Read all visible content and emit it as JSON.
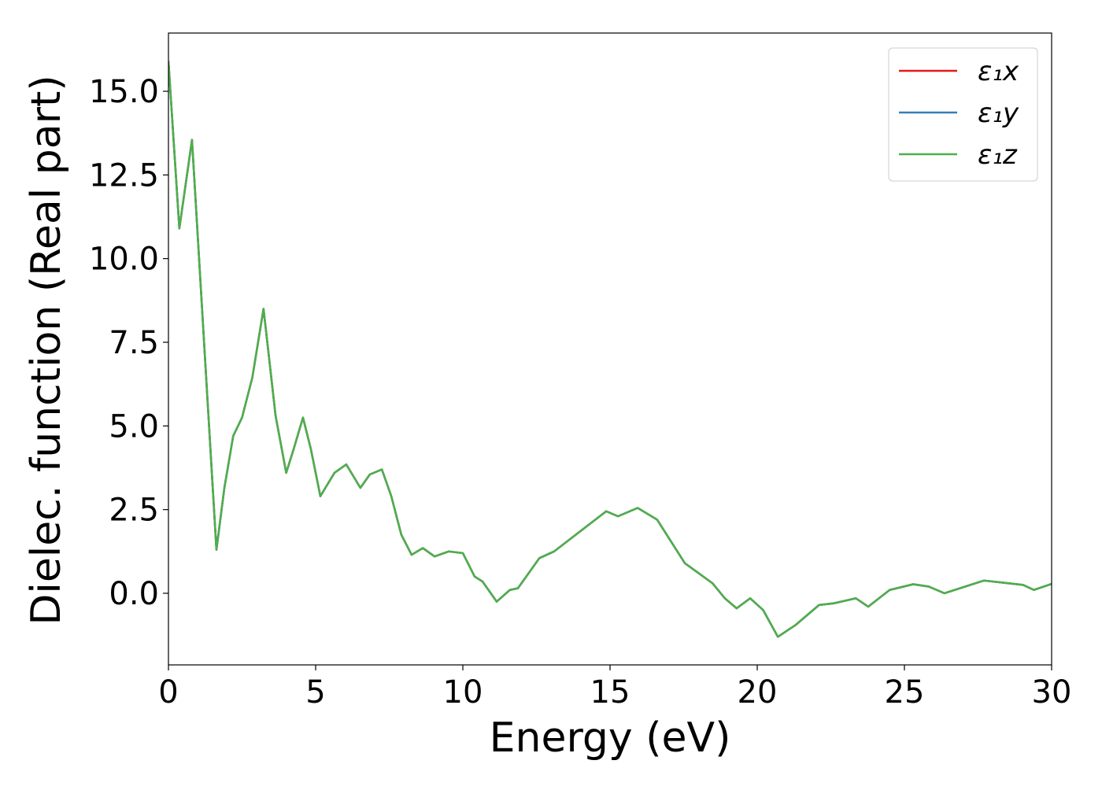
{
  "chart_data": {
    "type": "line",
    "xlabel": "Energy (eV)",
    "ylabel": "Dielec. function (Real part)",
    "x": [
      0,
      0.37,
      0.8,
      1.63,
      1.9,
      2.2,
      2.5,
      2.85,
      3.23,
      3.64,
      4.0,
      4.25,
      4.57,
      4.84,
      5.16,
      5.64,
      6.04,
      6.52,
      6.84,
      7.25,
      7.57,
      7.91,
      8.26,
      8.64,
      9.04,
      9.52,
      10.0,
      10.4,
      10.67,
      11.15,
      11.6,
      11.87,
      12.6,
      13.1,
      14.06,
      14.87,
      15.27,
      15.94,
      16.6,
      17.54,
      18.48,
      18.9,
      19.3,
      19.76,
      20.2,
      20.7,
      21.3,
      22.1,
      22.6,
      23.35,
      23.77,
      24.5,
      25.3,
      25.83,
      26.36,
      27.7,
      29.03,
      29.4,
      30
    ],
    "series": [
      {
        "name": "ε₁x",
        "color": "#e41a1c",
        "values": [
          15.9,
          10.9,
          13.55,
          1.3,
          3.15,
          4.7,
          5.25,
          6.45,
          8.5,
          5.3,
          3.6,
          4.3,
          5.25,
          4.3,
          2.9,
          3.6,
          3.85,
          3.15,
          3.55,
          3.7,
          2.9,
          1.75,
          1.15,
          1.35,
          1.1,
          1.25,
          1.2,
          0.5,
          0.35,
          -0.25,
          0.1,
          0.15,
          1.05,
          1.25,
          1.9,
          2.45,
          2.3,
          2.55,
          2.2,
          0.9,
          0.3,
          -0.15,
          -0.45,
          -0.15,
          -0.5,
          -1.3,
          -0.95,
          -0.35,
          -0.3,
          -0.15,
          -0.4,
          0.1,
          0.27,
          0.2,
          0,
          0.38,
          0.25,
          0.1,
          0.28
        ]
      },
      {
        "name": "ε₁y",
        "color": "#377eb8",
        "values": [
          15.9,
          10.9,
          13.55,
          1.3,
          3.15,
          4.7,
          5.25,
          6.45,
          8.5,
          5.3,
          3.6,
          4.3,
          5.25,
          4.3,
          2.9,
          3.6,
          3.85,
          3.15,
          3.55,
          3.7,
          2.9,
          1.75,
          1.15,
          1.35,
          1.1,
          1.25,
          1.2,
          0.5,
          0.35,
          -0.25,
          0.1,
          0.15,
          1.05,
          1.25,
          1.9,
          2.45,
          2.3,
          2.55,
          2.2,
          0.9,
          0.3,
          -0.15,
          -0.45,
          -0.15,
          -0.5,
          -1.3,
          -0.95,
          -0.35,
          -0.3,
          -0.15,
          -0.4,
          0.1,
          0.27,
          0.2,
          0,
          0.38,
          0.25,
          0.1,
          0.28
        ]
      },
      {
        "name": "ε₁z",
        "color": "#4daf4a",
        "values": [
          15.9,
          10.9,
          13.55,
          1.3,
          3.15,
          4.7,
          5.25,
          6.45,
          8.5,
          5.3,
          3.6,
          4.3,
          5.25,
          4.3,
          2.9,
          3.6,
          3.85,
          3.15,
          3.55,
          3.7,
          2.9,
          1.75,
          1.15,
          1.35,
          1.1,
          1.25,
          1.2,
          0.5,
          0.35,
          -0.25,
          0.1,
          0.15,
          1.05,
          1.25,
          1.9,
          2.45,
          2.3,
          2.55,
          2.2,
          0.9,
          0.3,
          -0.15,
          -0.45,
          -0.15,
          -0.5,
          -1.3,
          -0.95,
          -0.35,
          -0.3,
          -0.15,
          -0.4,
          0.1,
          0.27,
          0.2,
          0,
          0.38,
          0.25,
          0.1,
          0.28
        ]
      }
    ],
    "xlim": [
      0,
      30
    ],
    "xticks": [
      0,
      5,
      10,
      15,
      20,
      25,
      30
    ],
    "ylim": [
      -2.14,
      16.74
    ],
    "yticks": [
      {
        "value": 0,
        "label": "0.0"
      },
      2.5,
      {
        "value": 5,
        "label": "5.0"
      },
      7.5,
      {
        "value": 10,
        "label": "10.0"
      },
      12.5,
      {
        "value": 15,
        "label": "15.0"
      }
    ],
    "legend": "upper right",
    "grid": false
  }
}
